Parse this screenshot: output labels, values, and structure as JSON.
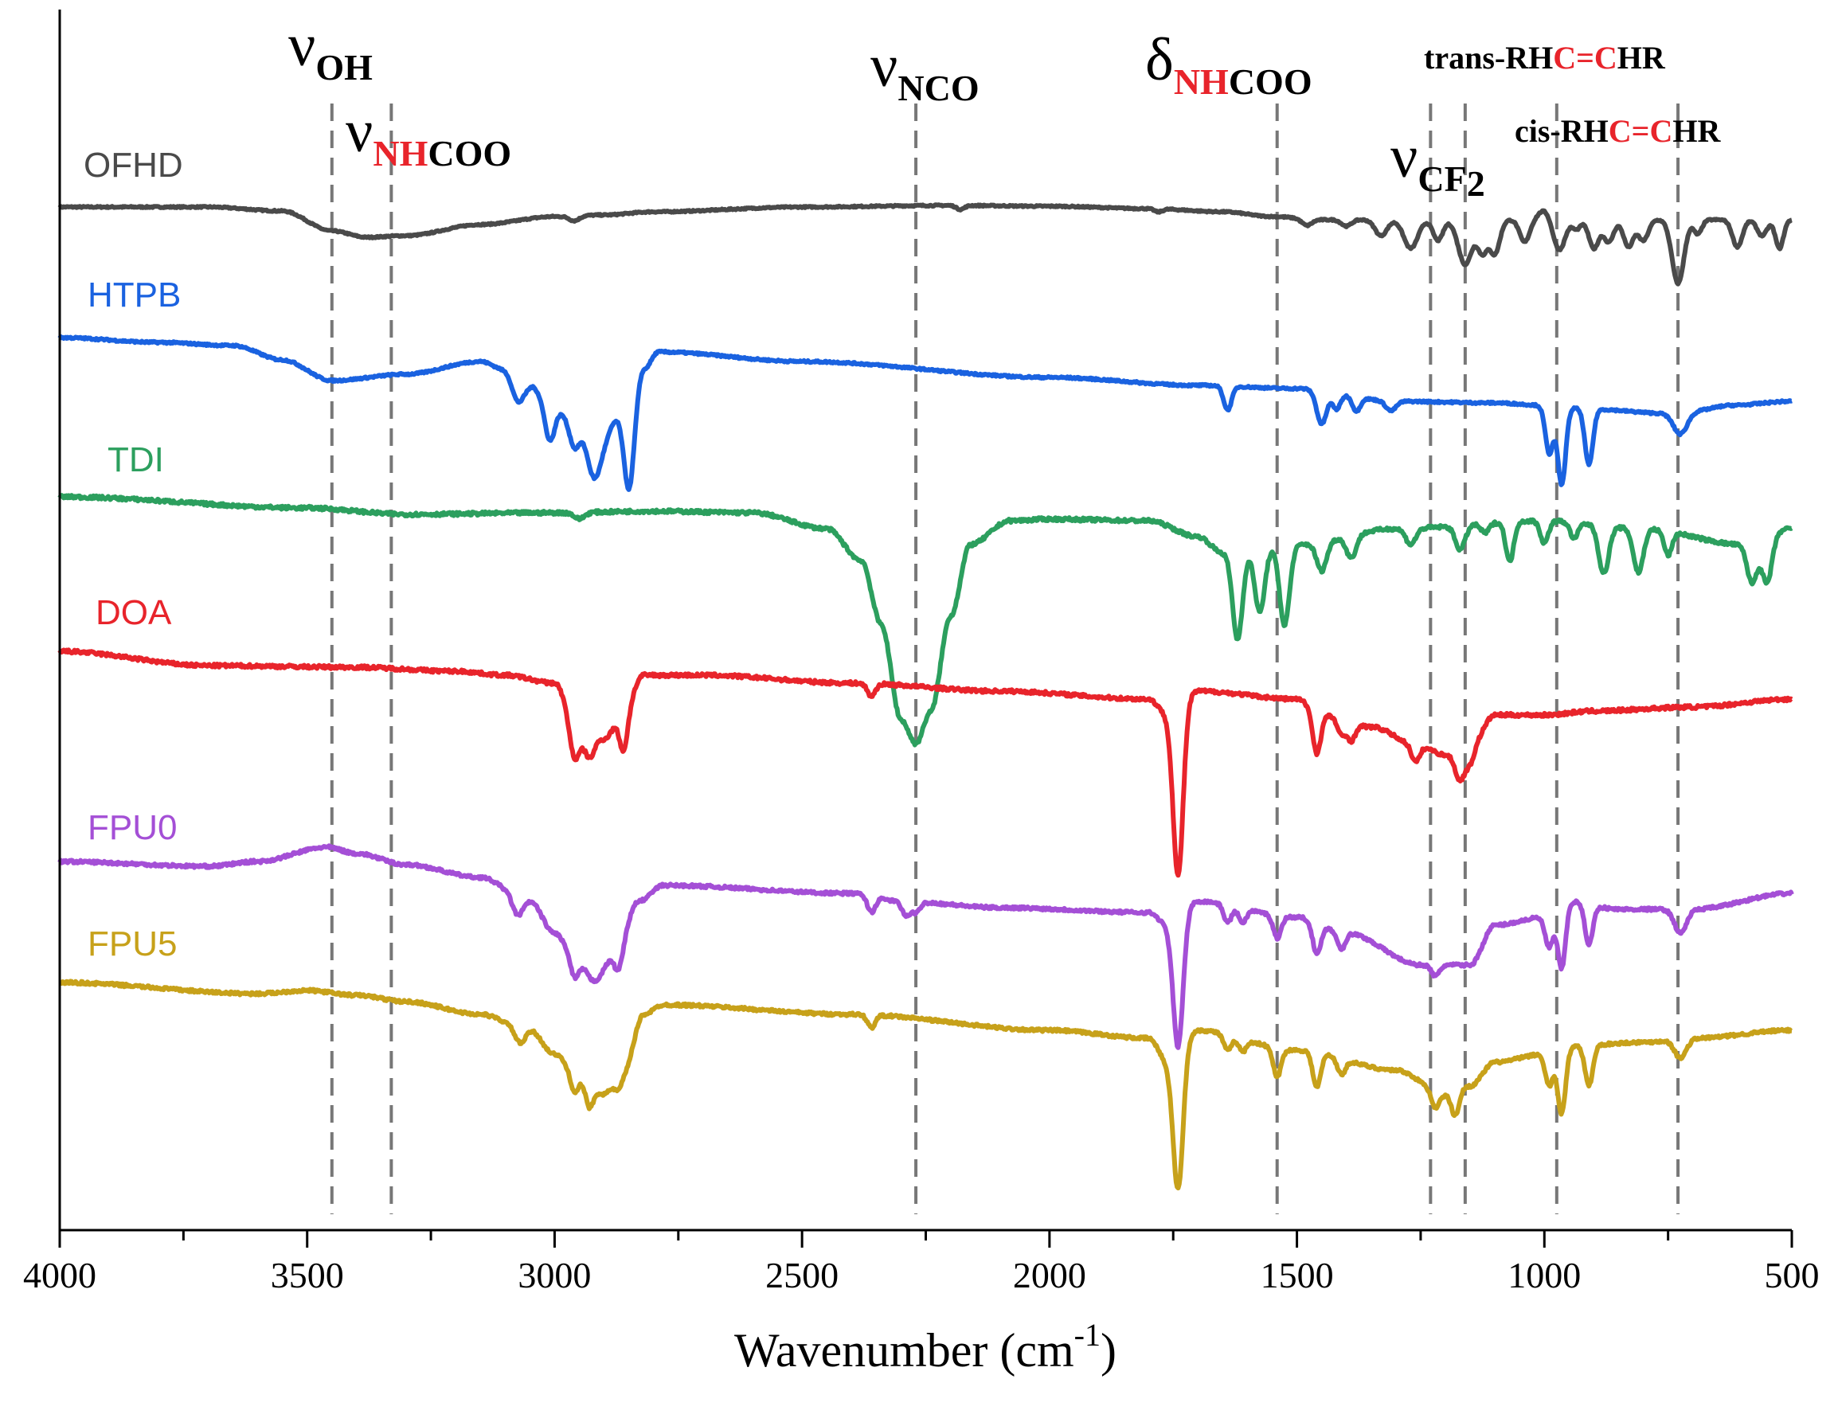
{
  "chart_data": {
    "type": "line",
    "title": "",
    "xlabel": "Wavenumber (cm",
    "xlabel_sup": "-1",
    "xlabel_close": ")",
    "ylabel": "",
    "xlim": [
      4000,
      500
    ],
    "x_ticks": [
      4000,
      3500,
      3000,
      2500,
      2000,
      1500,
      1000,
      500
    ],
    "y_ticks_visible": false,
    "red_color": "#e8242b",
    "series": [
      {
        "name": "OFHD",
        "color": "#4a4a4a",
        "baseline": 0.5,
        "noise": 0.15,
        "anchors": [
          [
            4000,
            0
          ],
          [
            3700,
            0
          ],
          [
            3550,
            -5
          ],
          [
            3450,
            -30
          ],
          [
            3380,
            -38
          ],
          [
            3300,
            -36
          ],
          [
            3150,
            -22
          ],
          [
            3000,
            -12
          ],
          [
            2900,
            -10
          ],
          [
            2800,
            -6
          ],
          [
            2500,
            0
          ],
          [
            2200,
            2
          ],
          [
            2000,
            1
          ],
          [
            1800,
            -2
          ],
          [
            1650,
            -6
          ],
          [
            1550,
            -12
          ],
          [
            1450,
            -16
          ]
        ],
        "peaks": [
          [
            2960,
            6,
            10
          ],
          [
            2180,
            5,
            8
          ],
          [
            1780,
            4,
            8
          ],
          [
            1480,
            8,
            10
          ],
          [
            1400,
            8,
            10
          ],
          [
            1330,
            20,
            12
          ],
          [
            1270,
            36,
            14
          ],
          [
            1215,
            26,
            10
          ],
          [
            1160,
            56,
            14
          ],
          [
            1125,
            40,
            10
          ],
          [
            1100,
            42,
            10
          ],
          [
            1040,
            28,
            10
          ],
          [
            1000,
            -12,
            12
          ],
          [
            970,
            38,
            12
          ],
          [
            935,
            12,
            8
          ],
          [
            900,
            36,
            10
          ],
          [
            870,
            28,
            10
          ],
          [
            830,
            34,
            10
          ],
          [
            800,
            26,
            10
          ],
          [
            730,
            80,
            12
          ],
          [
            690,
            18,
            8
          ],
          [
            610,
            34,
            10
          ],
          [
            560,
            20,
            10
          ],
          [
            525,
            36,
            8
          ]
        ]
      },
      {
        "name": "HTPB",
        "color": "#1a62e0",
        "baseline": 0.5,
        "noise": 0.2,
        "anchors": [
          [
            4000,
            0
          ],
          [
            3800,
            -6
          ],
          [
            3650,
            -10
          ],
          [
            3550,
            -28
          ],
          [
            3450,
            -54
          ],
          [
            3300,
            -46
          ],
          [
            3150,
            -30
          ],
          [
            3100,
            -40
          ],
          [
            3050,
            -60
          ],
          [
            3000,
            -90
          ],
          [
            2950,
            -110
          ],
          [
            2900,
            -120
          ],
          [
            2870,
            -100
          ],
          [
            2850,
            -110
          ],
          [
            2820,
            -40
          ],
          [
            2790,
            -18
          ],
          [
            2500,
            -30
          ],
          [
            2000,
            -50
          ],
          [
            1700,
            -60
          ],
          [
            1500,
            -64
          ],
          [
            1300,
            -80
          ],
          [
            1100,
            -82
          ],
          [
            1000,
            -85
          ],
          [
            900,
            -90
          ],
          [
            760,
            -95
          ],
          [
            700,
            -92
          ],
          [
            620,
            -85
          ],
          [
            500,
            -80
          ]
        ],
        "peaks": [
          [
            3075,
            30,
            12
          ],
          [
            3010,
            42,
            10
          ],
          [
            2960,
            30,
            10
          ],
          [
            2920,
            60,
            14
          ],
          [
            2850,
            80,
            10
          ],
          [
            1640,
            30,
            8
          ],
          [
            1450,
            42,
            10
          ],
          [
            1420,
            20,
            8
          ],
          [
            1380,
            18,
            8
          ],
          [
            1310,
            12,
            10
          ],
          [
            990,
            60,
            8
          ],
          [
            965,
            98,
            8
          ],
          [
            910,
            70,
            8
          ],
          [
            725,
            28,
            14
          ]
        ]
      },
      {
        "name": "TDI",
        "color": "#2c9f5e",
        "baseline": 0.5,
        "noise": 0.35,
        "anchors": [
          [
            4000,
            0
          ],
          [
            3500,
            -14
          ],
          [
            3300,
            -22
          ],
          [
            3000,
            -20
          ],
          [
            2800,
            -18
          ],
          [
            2600,
            -20
          ],
          [
            2450,
            -40
          ],
          [
            2380,
            -80
          ],
          [
            2340,
            -160
          ],
          [
            2300,
            -280
          ],
          [
            2270,
            -310
          ],
          [
            2240,
            -270
          ],
          [
            2200,
            -150
          ],
          [
            2160,
            -60
          ],
          [
            2080,
            -30
          ],
          [
            2000,
            -28
          ],
          [
            1800,
            -30
          ],
          [
            1700,
            -50
          ],
          [
            1650,
            -70
          ],
          [
            1500,
            -60
          ],
          [
            1300,
            -40
          ],
          [
            1000,
            -30
          ],
          [
            800,
            -40
          ],
          [
            600,
            -60
          ],
          [
            500,
            -40
          ]
        ],
        "peaks": [
          [
            2950,
            8,
            10
          ],
          [
            1620,
            110,
            10
          ],
          [
            1575,
            80,
            10
          ],
          [
            1525,
            100,
            10
          ],
          [
            1450,
            36,
            10
          ],
          [
            1390,
            28,
            10
          ],
          [
            1270,
            20,
            10
          ],
          [
            1170,
            30,
            10
          ],
          [
            1120,
            12,
            8
          ],
          [
            1070,
            50,
            8
          ],
          [
            1000,
            28,
            8
          ],
          [
            940,
            20,
            8
          ],
          [
            880,
            60,
            10
          ],
          [
            810,
            55,
            10
          ],
          [
            750,
            30,
            8
          ],
          [
            580,
            50,
            10
          ],
          [
            550,
            58,
            10
          ]
        ]
      },
      {
        "name": "DOA",
        "color": "#e8242b",
        "baseline": 0.5,
        "noise": 0.35,
        "anchors": [
          [
            4000,
            0
          ],
          [
            3700,
            -18
          ],
          [
            3400,
            -20
          ],
          [
            3200,
            -25
          ],
          [
            3100,
            -30
          ],
          [
            3000,
            -40
          ],
          [
            2950,
            -100
          ],
          [
            2900,
            -110
          ],
          [
            2870,
            -90
          ],
          [
            2820,
            -30
          ],
          [
            2700,
            -30
          ],
          [
            2400,
            -40
          ],
          [
            2100,
            -50
          ],
          [
            1800,
            -60
          ],
          [
            1760,
            -80
          ],
          [
            1700,
            -50
          ],
          [
            1500,
            -60
          ],
          [
            1450,
            -80
          ],
          [
            1350,
            -95
          ],
          [
            1250,
            -120
          ],
          [
            1200,
            -130
          ],
          [
            1150,
            -120
          ],
          [
            1100,
            -80
          ],
          [
            1000,
            -80
          ],
          [
            900,
            -75
          ],
          [
            700,
            -70
          ],
          [
            500,
            -60
          ]
        ],
        "peaks": [
          [
            2960,
            40,
            10
          ],
          [
            2930,
            30,
            10
          ],
          [
            2860,
            40,
            8
          ],
          [
            2360,
            16,
            8
          ],
          [
            1740,
            210,
            10
          ],
          [
            1460,
            50,
            8
          ],
          [
            1410,
            20,
            8
          ],
          [
            1390,
            22,
            8
          ],
          [
            1260,
            20,
            8
          ],
          [
            1170,
            38,
            10
          ],
          [
            1150,
            18,
            8
          ]
        ]
      },
      {
        "name": "FPU0",
        "color": "#a44fd6",
        "baseline": 0.5,
        "noise": 0.3,
        "anchors": [
          [
            4000,
            0
          ],
          [
            3700,
            -6
          ],
          [
            3600,
            0
          ],
          [
            3460,
            18
          ],
          [
            3400,
            10
          ],
          [
            3300,
            -4
          ],
          [
            3150,
            -20
          ],
          [
            3050,
            -50
          ],
          [
            3000,
            -90
          ],
          [
            2950,
            -130
          ],
          [
            2920,
            -150
          ],
          [
            2880,
            -120
          ],
          [
            2830,
            -50
          ],
          [
            2780,
            -30
          ],
          [
            2400,
            -40
          ],
          [
            2300,
            -50
          ],
          [
            2100,
            -58
          ],
          [
            1800,
            -64
          ],
          [
            1760,
            -80
          ],
          [
            1700,
            -50
          ],
          [
            1500,
            -70
          ],
          [
            1400,
            -90
          ],
          [
            1250,
            -130
          ],
          [
            1150,
            -130
          ],
          [
            1100,
            -80
          ],
          [
            1000,
            -70
          ],
          [
            950,
            -50
          ],
          [
            850,
            -60
          ],
          [
            700,
            -60
          ],
          [
            500,
            -40
          ]
        ],
        "peaks": [
          [
            3075,
            22,
            10
          ],
          [
            2960,
            20,
            8
          ],
          [
            2870,
            22,
            8
          ],
          [
            2360,
            20,
            8
          ],
          [
            2290,
            18,
            8
          ],
          [
            2270,
            14,
            8
          ],
          [
            1740,
            160,
            10
          ],
          [
            1640,
            22,
            8
          ],
          [
            1610,
            18,
            8
          ],
          [
            1540,
            28,
            8
          ],
          [
            1460,
            40,
            8
          ],
          [
            1410,
            20,
            8
          ],
          [
            1220,
            14,
            8
          ],
          [
            990,
            40,
            8
          ],
          [
            965,
            80,
            8
          ],
          [
            910,
            50,
            8
          ],
          [
            725,
            30,
            12
          ]
        ]
      },
      {
        "name": "FPU5",
        "color": "#c7a11a",
        "baseline": 0.5,
        "noise": 0.3,
        "anchors": [
          [
            4000,
            0
          ],
          [
            3600,
            -14
          ],
          [
            3500,
            -10
          ],
          [
            3400,
            -16
          ],
          [
            3300,
            -24
          ],
          [
            3150,
            -40
          ],
          [
            3050,
            -60
          ],
          [
            3000,
            -90
          ],
          [
            2950,
            -120
          ],
          [
            2900,
            -140
          ],
          [
            2860,
            -110
          ],
          [
            2820,
            -40
          ],
          [
            2780,
            -28
          ],
          [
            2400,
            -40
          ],
          [
            2000,
            -60
          ],
          [
            1800,
            -70
          ],
          [
            1760,
            -100
          ],
          [
            1700,
            -60
          ],
          [
            1500,
            -85
          ],
          [
            1300,
            -110
          ],
          [
            1200,
            -140
          ],
          [
            1150,
            -130
          ],
          [
            1100,
            -100
          ],
          [
            1000,
            -90
          ],
          [
            950,
            -80
          ],
          [
            800,
            -75
          ],
          [
            700,
            -70
          ],
          [
            500,
            -60
          ]
        ],
        "peaks": [
          [
            3070,
            18,
            10
          ],
          [
            2960,
            20,
            8
          ],
          [
            2930,
            30,
            8
          ],
          [
            2870,
            20,
            8
          ],
          [
            2360,
            16,
            8
          ],
          [
            1740,
            170,
            10
          ],
          [
            1640,
            20,
            8
          ],
          [
            1610,
            16,
            8
          ],
          [
            1540,
            36,
            8
          ],
          [
            1460,
            44,
            8
          ],
          [
            1410,
            20,
            8
          ],
          [
            1220,
            20,
            8
          ],
          [
            1180,
            30,
            8
          ],
          [
            990,
            40,
            8
          ],
          [
            965,
            82,
            8
          ],
          [
            910,
            50,
            8
          ],
          [
            725,
            24,
            12
          ]
        ]
      }
    ],
    "vertical_lines": [
      3450,
      3330,
      2270,
      1540,
      1230,
      1160,
      975,
      730
    ],
    "annotations": {
      "v_oh": {
        "sym": "ν",
        "sub": "OH"
      },
      "v_nhcoo": {
        "sym": "ν",
        "sub_red": "NH",
        "sub_black": "COO"
      },
      "v_nco": {
        "sym": "ν",
        "sub": "NCO"
      },
      "d_nhcoo": {
        "sym": "δ",
        "sub_red": "NH",
        "sub_black": "COO"
      },
      "v_cf2": {
        "sym": "ν",
        "sub": "CF",
        "sub2": "2"
      },
      "trans": {
        "pre": "trans-RH",
        "c1": "C",
        "eq": "=",
        "c2": "C",
        "post": "HR"
      },
      "cis": {
        "pre": "cis-RH",
        "c1": "C",
        "eq": "=",
        "c2": "C",
        "post": "HR"
      }
    }
  }
}
